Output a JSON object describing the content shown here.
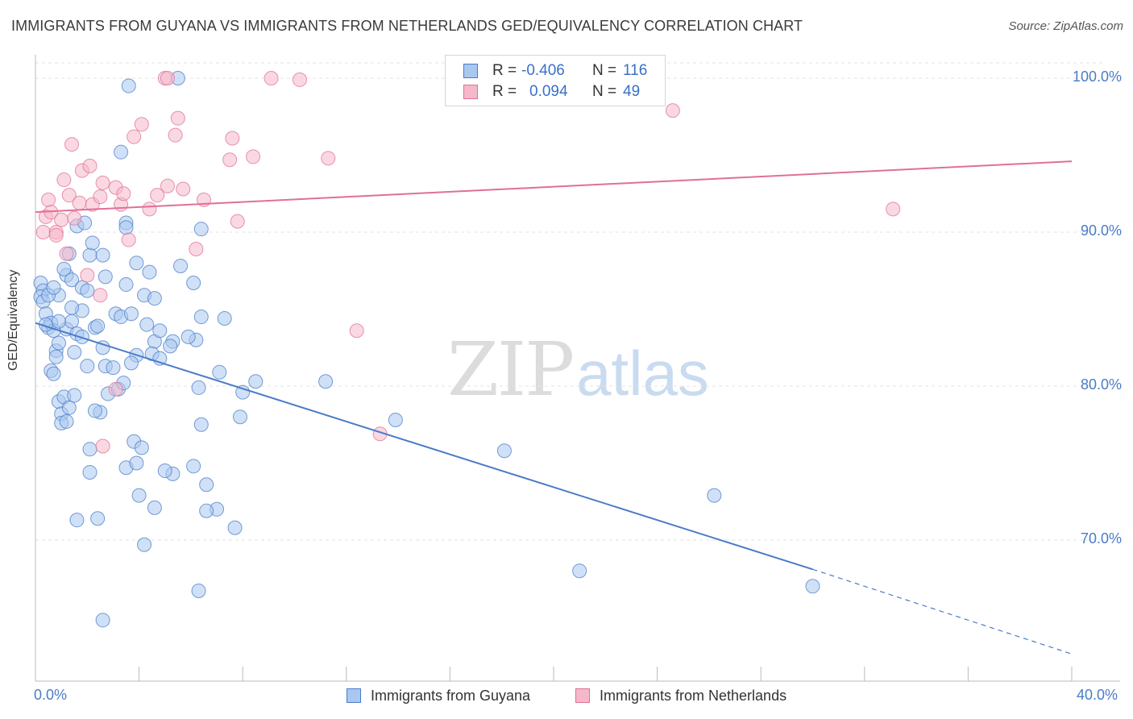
{
  "title": "IMMIGRANTS FROM GUYANA VS IMMIGRANTS FROM NETHERLANDS GED/EQUIVALENCY CORRELATION CHART",
  "source": "Source: ZipAtlas.com",
  "watermark": {
    "zip": "ZIP",
    "atlas": "atlas"
  },
  "colors": {
    "blue": "#4a7cc8",
    "blue_fill": "#a9c8f0",
    "pink": "#e07095",
    "pink_fill": "#f5b8cb"
  },
  "legend_top": {
    "rows": [
      {
        "r_label": "R =",
        "r_value": "-0.406",
        "n_label": "N =",
        "n_value": "116"
      },
      {
        "r_label": "R =",
        "r_value": "0.094",
        "n_label": "N =",
        "n_value": "49"
      }
    ]
  },
  "legend_bottom": {
    "guyana": "Immigrants from Guyana",
    "netherlands": "Immigrants from Netherlands"
  },
  "chart_data": {
    "type": "scatter",
    "title": "IMMIGRANTS FROM GUYANA VS IMMIGRANTS FROM NETHERLANDS GED/EQUIVALENCY CORRELATION CHART",
    "xlabel": "",
    "ylabel": "GED/Equivalency",
    "xlim": [
      0,
      40
    ],
    "ylim": [
      60.5,
      101.5
    ],
    "x_tick_labels": [
      "0.0%",
      "40.0%"
    ],
    "y_ticks": [
      70,
      80,
      90,
      100
    ],
    "y_tick_labels": [
      "70.0%",
      "80.0%",
      "90.0%",
      "100.0%"
    ],
    "grid": true,
    "series": [
      {
        "name": "Immigrants from Guyana",
        "color": "#4a7cc8",
        "trend": {
          "x": [
            0,
            30
          ],
          "y": [
            84.1,
            68.1
          ],
          "dash_to": [
            40,
            62.6
          ]
        },
        "points": [
          [
            0.2,
            86.7
          ],
          [
            0.3,
            86.2
          ],
          [
            0.2,
            85.8
          ],
          [
            0.3,
            85.5
          ],
          [
            0.4,
            84.7
          ],
          [
            0.5,
            83.8
          ],
          [
            0.6,
            84.1
          ],
          [
            0.7,
            83.6
          ],
          [
            0.8,
            82.3
          ],
          [
            0.8,
            81.9
          ],
          [
            0.6,
            81.0
          ],
          [
            0.7,
            80.8
          ],
          [
            0.9,
            79.0
          ],
          [
            1.0,
            78.2
          ],
          [
            1.0,
            77.6
          ],
          [
            1.2,
            77.7
          ],
          [
            1.1,
            79.3
          ],
          [
            1.3,
            78.6
          ],
          [
            0.9,
            82.8
          ],
          [
            1.2,
            83.7
          ],
          [
            1.4,
            84.2
          ],
          [
            1.5,
            82.2
          ],
          [
            1.6,
            83.4
          ],
          [
            1.5,
            79.4
          ],
          [
            1.2,
            87.2
          ],
          [
            1.3,
            88.6
          ],
          [
            1.1,
            87.6
          ],
          [
            1.4,
            86.9
          ],
          [
            1.8,
            86.4
          ],
          [
            0.9,
            85.9
          ],
          [
            1.8,
            84.9
          ],
          [
            2.0,
            86.2
          ],
          [
            2.1,
            88.5
          ],
          [
            2.2,
            89.3
          ],
          [
            2.3,
            83.8
          ],
          [
            2.6,
            88.5
          ],
          [
            2.0,
            81.3
          ],
          [
            2.6,
            82.5
          ],
          [
            2.7,
            81.3
          ],
          [
            2.8,
            79.5
          ],
          [
            2.5,
            78.3
          ],
          [
            2.3,
            78.4
          ],
          [
            2.1,
            75.9
          ],
          [
            2.1,
            74.4
          ],
          [
            1.6,
            71.3
          ],
          [
            2.4,
            71.4
          ],
          [
            1.6,
            90.4
          ],
          [
            1.9,
            90.6
          ],
          [
            2.7,
            87.1
          ],
          [
            3.1,
            84.7
          ],
          [
            3.3,
            84.5
          ],
          [
            3.7,
            84.7
          ],
          [
            3.5,
            86.6
          ],
          [
            3.9,
            88.0
          ],
          [
            4.2,
            85.9
          ],
          [
            4.4,
            87.4
          ],
          [
            4.3,
            84.0
          ],
          [
            4.6,
            82.9
          ],
          [
            4.6,
            85.7
          ],
          [
            5.3,
            82.9
          ],
          [
            4.8,
            83.6
          ],
          [
            3.9,
            82.0
          ],
          [
            4.5,
            82.1
          ],
          [
            3.7,
            81.5
          ],
          [
            3.0,
            81.2
          ],
          [
            3.2,
            79.8
          ],
          [
            3.4,
            80.2
          ],
          [
            3.5,
            74.7
          ],
          [
            3.8,
            76.4
          ],
          [
            4.1,
            76.0
          ],
          [
            3.9,
            75.0
          ],
          [
            4.0,
            72.9
          ],
          [
            4.6,
            72.1
          ],
          [
            4.2,
            69.7
          ],
          [
            5.3,
            74.3
          ],
          [
            5.0,
            74.5
          ],
          [
            6.1,
            74.8
          ],
          [
            7.0,
            72.0
          ],
          [
            6.6,
            73.6
          ],
          [
            6.6,
            71.9
          ],
          [
            7.7,
            70.8
          ],
          [
            6.3,
            66.7
          ],
          [
            2.6,
            64.8
          ],
          [
            3.5,
            90.6
          ],
          [
            3.5,
            90.3
          ],
          [
            6.4,
            90.2
          ],
          [
            5.6,
            87.8
          ],
          [
            6.1,
            86.7
          ],
          [
            6.2,
            83.0
          ],
          [
            5.9,
            83.2
          ],
          [
            6.4,
            84.5
          ],
          [
            7.3,
            84.4
          ],
          [
            7.1,
            80.9
          ],
          [
            6.3,
            79.9
          ],
          [
            6.4,
            77.5
          ],
          [
            7.9,
            78.0
          ],
          [
            8.0,
            79.6
          ],
          [
            8.5,
            80.3
          ],
          [
            11.2,
            80.3
          ],
          [
            13.9,
            77.8
          ],
          [
            18.1,
            75.8
          ],
          [
            21.0,
            68.0
          ],
          [
            26.2,
            72.9
          ],
          [
            30.0,
            67.0
          ],
          [
            3.3,
            95.2
          ],
          [
            3.6,
            99.5
          ],
          [
            5.5,
            100.0
          ],
          [
            2.4,
            83.9
          ],
          [
            0.5,
            85.9
          ],
          [
            0.7,
            86.4
          ],
          [
            0.9,
            84.2
          ],
          [
            1.4,
            85.1
          ],
          [
            1.8,
            83.2
          ],
          [
            4.8,
            81.8
          ],
          [
            5.2,
            82.6
          ],
          [
            0.4,
            84.0
          ]
        ]
      },
      {
        "name": "Immigrants from Netherlands",
        "color": "#e07095",
        "trend": {
          "x": [
            0,
            40
          ],
          "y": [
            91.3,
            94.6
          ]
        },
        "points": [
          [
            0.3,
            90.0
          ],
          [
            0.4,
            91.0
          ],
          [
            0.5,
            92.1
          ],
          [
            0.6,
            91.3
          ],
          [
            0.8,
            90.0
          ],
          [
            0.8,
            89.8
          ],
          [
            1.0,
            90.8
          ],
          [
            1.1,
            93.4
          ],
          [
            1.2,
            88.6
          ],
          [
            1.3,
            92.4
          ],
          [
            1.4,
            95.7
          ],
          [
            1.5,
            90.9
          ],
          [
            1.7,
            91.9
          ],
          [
            1.8,
            94.0
          ],
          [
            2.1,
            94.3
          ],
          [
            2.2,
            91.8
          ],
          [
            2.5,
            92.3
          ],
          [
            2.6,
            93.2
          ],
          [
            3.1,
            92.9
          ],
          [
            3.3,
            91.8
          ],
          [
            3.4,
            92.5
          ],
          [
            3.6,
            89.5
          ],
          [
            3.8,
            96.2
          ],
          [
            4.1,
            97.0
          ],
          [
            4.4,
            91.5
          ],
          [
            4.7,
            92.4
          ],
          [
            5.1,
            93.0
          ],
          [
            5.4,
            96.3
          ],
          [
            5.5,
            97.4
          ],
          [
            5.7,
            92.8
          ],
          [
            6.2,
            88.9
          ],
          [
            6.5,
            92.1
          ],
          [
            7.5,
            94.7
          ],
          [
            7.6,
            96.1
          ],
          [
            7.8,
            90.7
          ],
          [
            8.4,
            94.9
          ],
          [
            9.1,
            100.0
          ],
          [
            10.2,
            99.9
          ],
          [
            11.3,
            94.8
          ],
          [
            12.4,
            83.6
          ],
          [
            13.3,
            76.9
          ],
          [
            24.6,
            97.9
          ],
          [
            33.1,
            91.5
          ],
          [
            5.0,
            100.0
          ],
          [
            5.1,
            100.0
          ],
          [
            3.1,
            79.8
          ],
          [
            2.6,
            76.1
          ],
          [
            2.0,
            87.2
          ],
          [
            2.5,
            85.9
          ]
        ]
      }
    ]
  }
}
